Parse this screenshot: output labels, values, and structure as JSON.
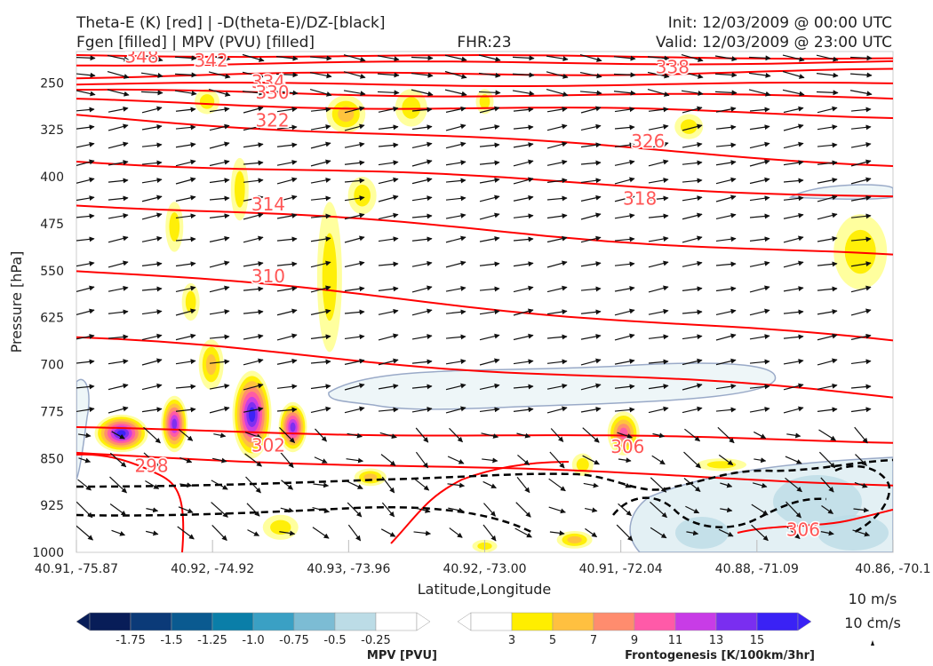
{
  "title": {
    "left_line1": "Theta-E (K) [red] | -D(theta-E)/DZ-[black]",
    "left_line2": "Fgen [filled] | MPV (PVU) [filled]",
    "center": "FHR:23",
    "right_line1": "Init: 12/03/2009 @ 00:00 UTC",
    "right_line2": "Valid: 12/03/2009 @ 23:00 UTC"
  },
  "colors": {
    "theta_e": "#ff0000",
    "stability": "#000000",
    "mpv_outline": "#9aaac8",
    "fgen_palette": [
      "#ffff99",
      "#ffee00",
      "#ffc040",
      "#ff8c6e",
      "#ff5aa8",
      "#c83ce6",
      "#7a2ef0",
      "#3a22f5"
    ],
    "mpv_palette": [
      "#081d58",
      "#0b3a78",
      "#0a5a90",
      "#0a7ea8",
      "#3aa0c4",
      "#7cbcd4",
      "#bcdce6",
      "#ffffff"
    ]
  },
  "chart_data": {
    "type": "cross-section",
    "xlabel": "Latitude,Longitude",
    "ylabel": "Pressure [hPa]",
    "x_ticks": [
      "40.91, -75.87",
      "40.92, -74.92",
      "40.93, -73.96",
      "40.92, -73.00",
      "40.91, -72.04",
      "40.88, -71.09",
      "40.86, -70.1"
    ],
    "y_ticks": [
      250,
      325,
      400,
      475,
      550,
      625,
      700,
      775,
      850,
      925,
      1000
    ],
    "y_range": [
      1000,
      200
    ],
    "y_scale": "linear",
    "theta_e_contour_labels": [
      {
        "label": "348",
        "x_frac": 0.08,
        "p": 208
      },
      {
        "label": "342",
        "x_frac": 0.165,
        "p": 214
      },
      {
        "label": "334",
        "x_frac": 0.235,
        "p": 248
      },
      {
        "label": "330",
        "x_frac": 0.24,
        "p": 265
      },
      {
        "label": "322",
        "x_frac": 0.24,
        "p": 310
      },
      {
        "label": "338",
        "x_frac": 0.73,
        "p": 225
      },
      {
        "label": "326",
        "x_frac": 0.7,
        "p": 343
      },
      {
        "label": "318",
        "x_frac": 0.69,
        "p": 435
      },
      {
        "label": "314",
        "x_frac": 0.235,
        "p": 444
      },
      {
        "label": "310",
        "x_frac": 0.235,
        "p": 559
      },
      {
        "label": "302",
        "x_frac": 0.235,
        "p": 829
      },
      {
        "label": "298",
        "x_frac": 0.092,
        "p": 862
      },
      {
        "label": "306",
        "x_frac": 0.675,
        "p": 831
      },
      {
        "label": "306",
        "x_frac": 0.89,
        "p": 964
      }
    ],
    "mpv_colorbar": {
      "label": "MPV [PVU]",
      "ticks": [
        "-1.75",
        "-1.5",
        "-1.25",
        "-1.0",
        "-0.75",
        "-0.5",
        "-0.25"
      ]
    },
    "fgen_colorbar": {
      "label": "Frontogenesis [K/100km/3hr]",
      "ticks": [
        "3",
        "5",
        "7",
        "9",
        "11",
        "13",
        "15"
      ]
    },
    "vector_key": {
      "line1": "10 m/s",
      "line2": "10 cm/s"
    }
  }
}
